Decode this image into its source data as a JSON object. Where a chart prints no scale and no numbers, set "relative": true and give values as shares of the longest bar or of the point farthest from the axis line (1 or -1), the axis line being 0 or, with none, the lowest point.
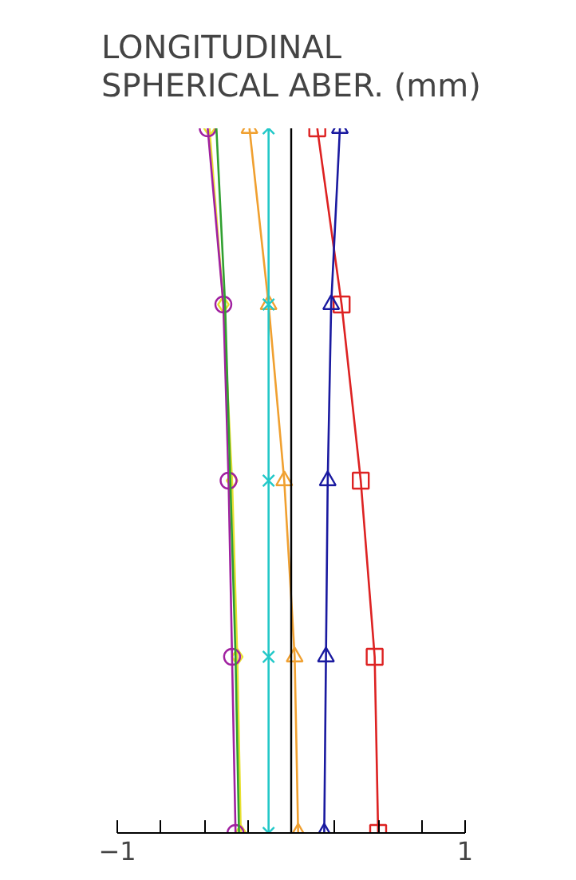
{
  "chart_data": {
    "type": "line",
    "title": "LONGITUDINAL SPHERICAL ABER. (mm)",
    "relative": true,
    "xlim": [
      -1,
      1
    ],
    "xticks": [
      -1,
      {
        "value": -0.75,
        "label": null
      },
      {
        "value": -0.5,
        "label": null
      },
      {
        "value": -0.25,
        "label": null
      },
      {
        "value": 0,
        "label": null
      },
      {
        "value": 0.25,
        "label": null
      },
      {
        "value": 0.5,
        "label": null
      },
      {
        "value": 0.75,
        "label": null
      },
      1
    ],
    "ref_lines": [
      {
        "axis": "x",
        "value": 0,
        "color": "#000000"
      }
    ],
    "series": [
      {
        "color": "#dd2222",
        "marker": "square",
        "x": [
          0.15,
          0.29,
          0.4,
          0.48,
          0.5
        ],
        "values": [
          1,
          0.75,
          0.5,
          0.25,
          0
        ]
      },
      {
        "color": "#1a1aa0",
        "marker": "triangle",
        "x": [
          0.28,
          0.23,
          0.21,
          0.2,
          0.19
        ],
        "values": [
          1,
          0.75,
          0.5,
          0.25,
          0
        ]
      },
      {
        "color": "#f0a030",
        "marker": "triangle",
        "x": [
          -0.24,
          -0.13,
          -0.04,
          0.02,
          0.04
        ],
        "values": [
          1,
          0.75,
          0.5,
          0.25,
          0
        ]
      },
      {
        "color": "#22c8c8",
        "marker": "cross",
        "x": [
          -0.13,
          -0.13,
          -0.13,
          -0.13,
          -0.13
        ],
        "values": [
          1,
          0.75,
          0.5,
          0.25,
          0
        ]
      },
      {
        "color": "#e8e030",
        "marker": "diamond",
        "x": [
          -0.47,
          -0.39,
          -0.34,
          -0.31,
          -0.29
        ],
        "values": [
          1,
          0.75,
          0.5,
          0.25,
          0
        ]
      },
      {
        "color": "#a020a0",
        "marker": "circle",
        "x": [
          -0.48,
          -0.39,
          -0.36,
          -0.34,
          -0.32
        ],
        "values": [
          1,
          0.75,
          0.5,
          0.25,
          0
        ]
      },
      {
        "color": "#30a030",
        "marker": "none",
        "x": [
          -0.43,
          -0.38,
          -0.35,
          -0.32,
          -0.3
        ],
        "values": [
          1,
          0.75,
          0.5,
          0.25,
          0
        ]
      }
    ]
  }
}
